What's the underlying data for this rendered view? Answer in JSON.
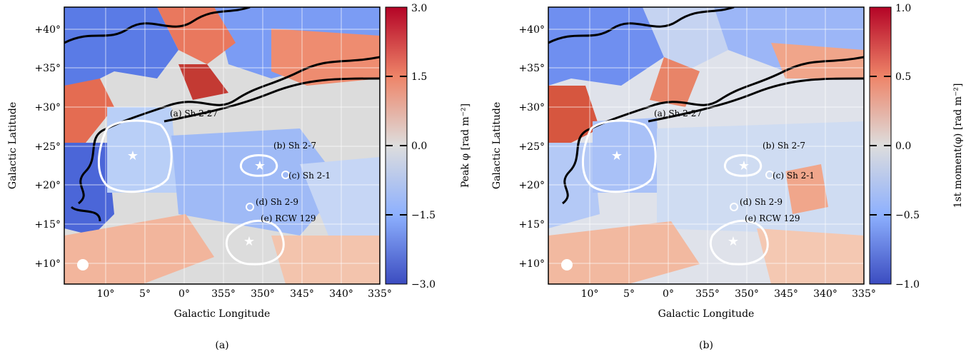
{
  "panels": [
    {
      "caption": "(a)",
      "xlabel": "Galactic Longitude",
      "ylabel": "Galactic Latitude",
      "xticks": [
        "10°",
        "5°",
        "0°",
        "355°",
        "350°",
        "345°",
        "340°",
        "335°"
      ],
      "yticks": [
        "+10°",
        "+15°",
        "+20°",
        "+25°",
        "+30°",
        "+35°",
        "+40°"
      ],
      "colorbar": {
        "label": "Peak φ [rad m⁻²]",
        "ticks": [
          "3.0",
          "1.5",
          "0.0",
          "−1.5",
          "−3.0"
        ],
        "range": [
          -3.0,
          3.0
        ]
      },
      "regions": [
        "(a) Sh 2-27",
        "(b) Sh 2-7",
        "(c) Sh 2-1",
        "(d) Sh 2-9",
        "(e) RCW 129"
      ]
    },
    {
      "caption": "(b)",
      "xlabel": "Galactic Longitude",
      "ylabel": "Galactic Latitude",
      "xticks": [
        "10°",
        "5°",
        "0°",
        "355°",
        "350°",
        "345°",
        "340°",
        "335°"
      ],
      "yticks": [
        "+10°",
        "+15°",
        "+20°",
        "+25°",
        "+30°",
        "+35°",
        "+40°"
      ],
      "colorbar": {
        "label": "1st moment(φ) [rad m⁻²]",
        "ticks": [
          "1.0",
          "0.5",
          "0.0",
          "−0.5",
          "−1.0"
        ],
        "range": [
          -1.0,
          1.0
        ]
      },
      "regions": [
        "(a) Sh 2-27",
        "(b) Sh 2-7",
        "(c) Sh 2-1",
        "(d) Sh 2-9",
        "(e) RCW 129"
      ]
    }
  ],
  "colors": {
    "red": "#b40426",
    "blue": "#3b4cc0",
    "neutral": "#dddddd"
  }
}
